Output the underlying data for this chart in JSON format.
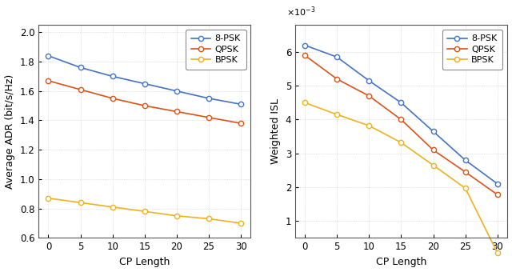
{
  "cp_length": [
    0,
    5,
    10,
    15,
    20,
    25,
    30
  ],
  "adr_8psk": [
    1.84,
    1.76,
    1.7,
    1.65,
    1.6,
    1.55,
    1.51
  ],
  "adr_qpsk": [
    1.67,
    1.61,
    1.55,
    1.5,
    1.46,
    1.42,
    1.38
  ],
  "adr_bpsk": [
    0.87,
    0.84,
    0.81,
    0.78,
    0.75,
    0.73,
    0.7
  ],
  "wisl_8psk": [
    0.0062,
    0.00585,
    0.00515,
    0.0045,
    0.00365,
    0.0028,
    0.0021
  ],
  "wisl_qpsk": [
    0.0059,
    0.0052,
    0.0047,
    0.004,
    0.0031,
    0.00245,
    0.00178
  ],
  "wisl_bpsk": [
    0.0045,
    0.00415,
    0.00382,
    0.00332,
    0.00265,
    0.00197,
    6e-05
  ],
  "color_8psk": "#4472C4",
  "color_qpsk": "#D95319",
  "color_bpsk": "#EDB120",
  "ylabel_left": "Average ADR (bit/s/Hz)",
  "ylabel_right": "Weighted ISL",
  "xlabel": "CP Length",
  "ylim_left": [
    0.6,
    2.05
  ],
  "ylim_right": [
    0.0005,
    0.0068
  ],
  "yticks_left": [
    0.6,
    0.8,
    1.0,
    1.2,
    1.4,
    1.6,
    1.8,
    2.0
  ],
  "yticks_right": [
    0.001,
    0.002,
    0.003,
    0.004,
    0.005,
    0.006
  ],
  "xticks": [
    0,
    5,
    10,
    15,
    20,
    25,
    30
  ],
  "legend_labels": [
    "8-PSK",
    "QPSK",
    "BPSK"
  ],
  "background_color": "#ffffff",
  "grid_color": "#c8c8c8"
}
